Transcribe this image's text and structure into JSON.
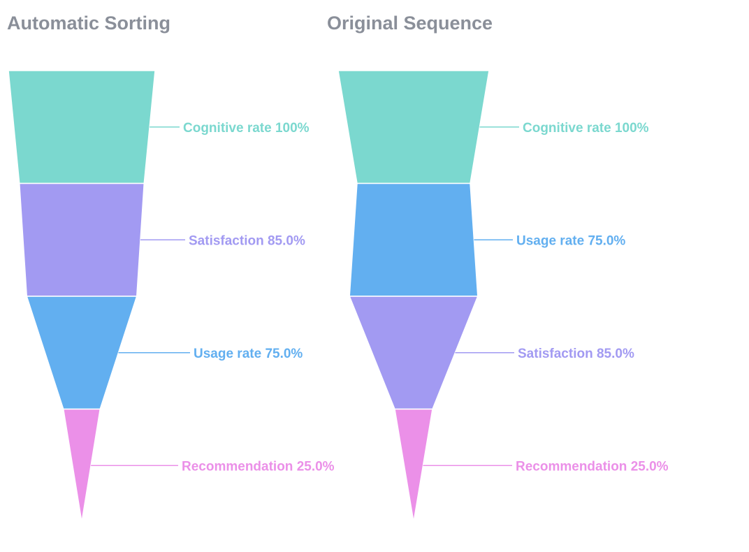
{
  "chart_data": [
    {
      "type": "funnel",
      "title": "Automatic Sorting",
      "series": [
        {
          "name": "Cognitive rate",
          "value": 100,
          "label": "Cognitive rate 100%",
          "color": "#7bd8cf"
        },
        {
          "name": "Satisfaction",
          "value": 85.0,
          "label": "Satisfaction 85.0%",
          "color": "#a29af2"
        },
        {
          "name": "Usage rate",
          "value": 75.0,
          "label": "Usage rate 75.0%",
          "color": "#62aff0"
        },
        {
          "name": "Recommendation",
          "value": 25.0,
          "label": "Recommendation 25.0%",
          "color": "#eb90e8"
        }
      ]
    },
    {
      "type": "funnel",
      "title": "Original Sequence",
      "series": [
        {
          "name": "Cognitive rate",
          "value": 100,
          "label": "Cognitive rate 100%",
          "color": "#7bd8cf"
        },
        {
          "name": "Usage rate",
          "value": 75.0,
          "label": "Usage rate 75.0%",
          "color": "#62aff0"
        },
        {
          "name": "Satisfaction",
          "value": 85.0,
          "label": "Satisfaction 85.0%",
          "color": "#a29af2"
        },
        {
          "name": "Recommendation",
          "value": 25.0,
          "label": "Recommendation 25.0%",
          "color": "#eb90e8"
        }
      ]
    }
  ]
}
